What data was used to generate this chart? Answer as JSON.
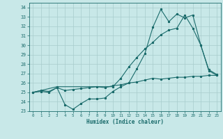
{
  "xlabel": "Humidex (Indice chaleur)",
  "xlim": [
    -0.5,
    23.5
  ],
  "ylim": [
    23,
    34.5
  ],
  "yticks": [
    23,
    24,
    25,
    26,
    27,
    28,
    29,
    30,
    31,
    32,
    33,
    34
  ],
  "xticks": [
    0,
    1,
    2,
    3,
    4,
    5,
    6,
    7,
    8,
    9,
    10,
    11,
    12,
    13,
    14,
    15,
    16,
    17,
    18,
    19,
    20,
    21,
    22,
    23
  ],
  "bg_color": "#c8e8e8",
  "grid_color": "#a8cccc",
  "line_color": "#1a6b6b",
  "line1_x": [
    0,
    1,
    2,
    3,
    4,
    5,
    6,
    7,
    8,
    9,
    10,
    11,
    12,
    13,
    14,
    15,
    16,
    17,
    18,
    19,
    20,
    21,
    22,
    23
  ],
  "line1_y": [
    25.0,
    25.2,
    25.1,
    25.5,
    23.7,
    23.2,
    23.8,
    24.3,
    24.3,
    24.4,
    25.1,
    25.6,
    26.0,
    27.5,
    29.1,
    31.9,
    33.8,
    32.5,
    33.3,
    32.9,
    33.2,
    30.0,
    27.3,
    26.8
  ],
  "line2_x": [
    0,
    1,
    2,
    3,
    4,
    5,
    6,
    7,
    8,
    9,
    10,
    11,
    12,
    13,
    14,
    15,
    16,
    17,
    18,
    19,
    20,
    21,
    22,
    23
  ],
  "line2_y": [
    25.0,
    25.1,
    25.0,
    25.5,
    25.2,
    25.3,
    25.4,
    25.5,
    25.6,
    25.5,
    25.7,
    25.8,
    26.0,
    26.1,
    26.3,
    26.5,
    26.4,
    26.5,
    26.6,
    26.6,
    26.7,
    26.7,
    26.8,
    26.8
  ],
  "line3_x": [
    0,
    3,
    10,
    11,
    12,
    13,
    14,
    15,
    16,
    17,
    18,
    19,
    20,
    21,
    22,
    23
  ],
  "line3_y": [
    25.0,
    25.6,
    25.6,
    26.5,
    27.7,
    28.7,
    29.6,
    30.3,
    31.1,
    31.6,
    31.8,
    33.2,
    31.8,
    30.0,
    27.4,
    26.9
  ]
}
